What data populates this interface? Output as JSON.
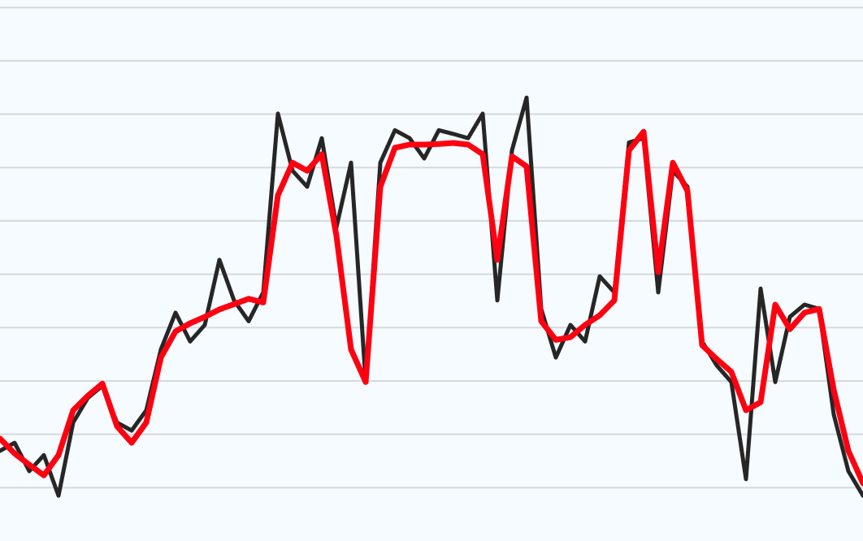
{
  "chart_data": {
    "type": "line",
    "x": [
      0,
      18,
      36,
      54,
      72,
      90,
      108,
      126,
      144,
      162,
      180,
      198,
      216,
      234,
      252,
      270,
      288,
      306,
      324,
      342,
      360,
      378,
      396,
      414,
      432,
      450,
      468,
      486,
      504,
      522,
      540,
      558,
      576,
      594,
      612,
      630,
      648,
      666,
      684,
      702,
      720,
      738,
      756,
      774,
      792,
      810,
      828,
      846,
      864,
      882,
      900,
      918,
      936,
      954,
      972,
      990,
      1008,
      1026,
      1044,
      1062
    ],
    "xlim": [
      0,
      1062
    ],
    "ylim": [
      0,
      10.14
    ],
    "yticks": [
      1,
      2,
      3,
      4,
      5,
      6,
      7,
      8,
      9,
      10
    ],
    "grid": true,
    "series": [
      {
        "color": "#262626",
        "width": 5,
        "values": [
          1.69,
          1.84,
          1.31,
          1.61,
          0.85,
          2.22,
          2.68,
          2.91,
          2.22,
          2.07,
          2.45,
          3.59,
          4.28,
          3.74,
          4.05,
          5.27,
          4.51,
          4.12,
          4.66,
          8.01,
          6.94,
          6.64,
          7.55,
          5.88,
          7.09,
          2.98,
          7.09,
          7.7,
          7.55,
          7.17,
          7.7,
          7.63,
          7.55,
          8.01,
          4.51,
          7.32,
          8.31,
          4.35,
          3.44,
          4.05,
          3.74,
          4.96,
          4.66,
          7.47,
          7.55,
          4.66,
          6.94,
          6.64,
          3.74,
          3.29,
          2.98,
          1.16,
          4.73,
          2.98,
          4.2,
          4.43,
          4.35,
          2.37,
          1.31,
          0.85
        ]
      },
      {
        "color": "#ff0010",
        "width": 7,
        "values": [
          1.92,
          1.64,
          1.43,
          1.23,
          1.61,
          2.45,
          2.72,
          2.95,
          2.15,
          1.84,
          2.22,
          3.44,
          3.93,
          4.08,
          4.2,
          4.34,
          4.44,
          4.54,
          4.47,
          6.48,
          7.09,
          6.94,
          7.25,
          5.72,
          3.59,
          2.98,
          6.64,
          7.37,
          7.43,
          7.43,
          7.44,
          7.46,
          7.43,
          7.25,
          5.27,
          7.21,
          7.02,
          4.12,
          3.77,
          3.82,
          4.05,
          4.23,
          4.51,
          7.32,
          7.67,
          5.04,
          7.09,
          6.56,
          3.67,
          3.41,
          3.17,
          2.45,
          2.6,
          4.43,
          3.97,
          4.28,
          4.35,
          2.83,
          1.69,
          1.08
        ]
      }
    ]
  }
}
